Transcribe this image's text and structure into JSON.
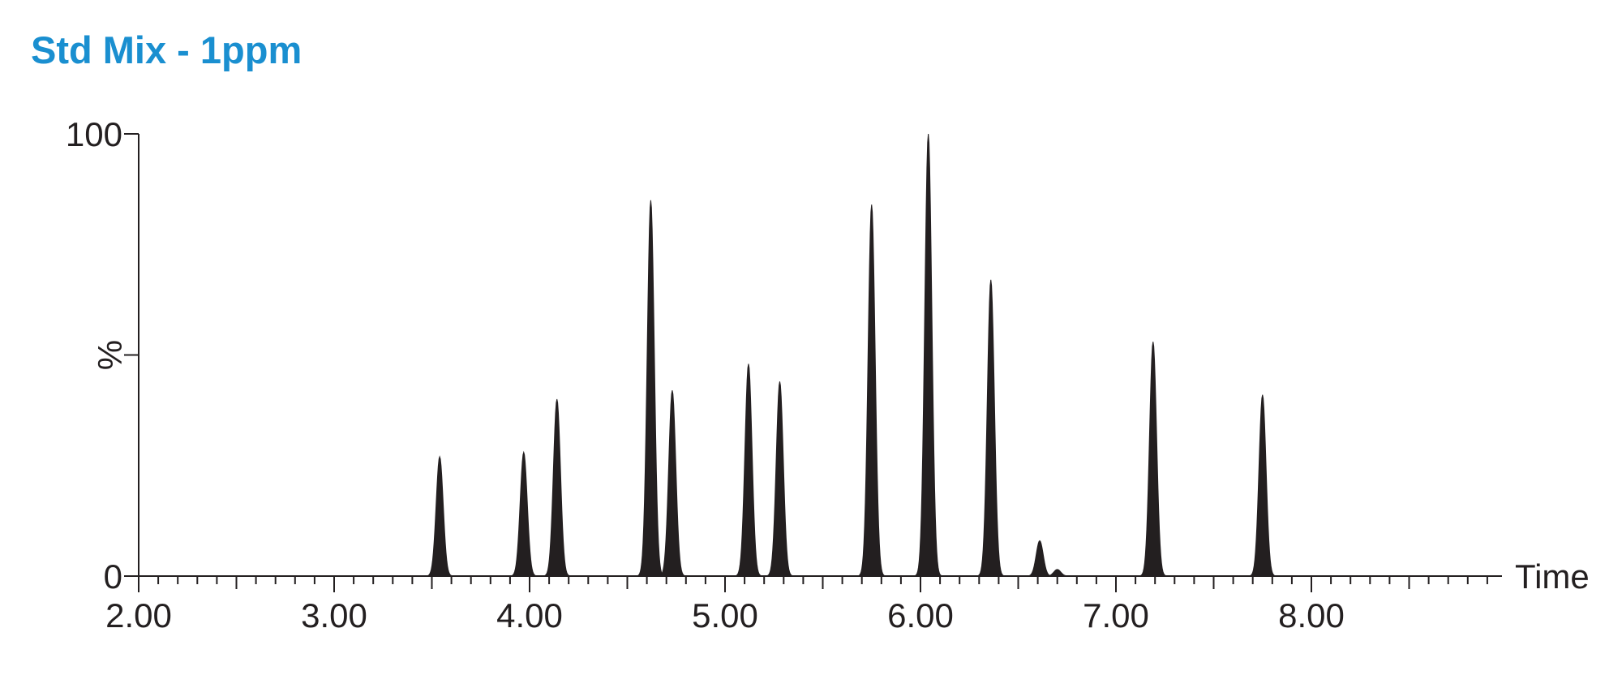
{
  "title": "Std Mix - 1ppm",
  "chart_data": {
    "type": "area",
    "title": "Std Mix - 1ppm",
    "xlabel": "Time",
    "ylabel": "%",
    "xlim": [
      2.0,
      8.95
    ],
    "ylim": [
      0,
      100
    ],
    "x_ticks": [
      2.0,
      3.0,
      4.0,
      5.0,
      6.0,
      7.0,
      8.0
    ],
    "x_tick_labels": [
      "2.00",
      "3.00",
      "4.00",
      "5.00",
      "6.00",
      "7.00",
      "8.00"
    ],
    "y_ticks": [
      0,
      50,
      100
    ],
    "y_tick_labels": [
      "0",
      "",
      "100"
    ],
    "grid": false,
    "legend": "none",
    "color": "#231f20",
    "peaks": [
      {
        "rt": 3.54,
        "height": 27
      },
      {
        "rt": 3.97,
        "height": 28
      },
      {
        "rt": 4.14,
        "height": 40
      },
      {
        "rt": 4.62,
        "height": 85
      },
      {
        "rt": 4.73,
        "height": 42
      },
      {
        "rt": 5.12,
        "height": 48
      },
      {
        "rt": 5.28,
        "height": 44
      },
      {
        "rt": 5.75,
        "height": 84
      },
      {
        "rt": 6.04,
        "height": 100
      },
      {
        "rt": 6.36,
        "height": 67
      },
      {
        "rt": 6.61,
        "height": 8
      },
      {
        "rt": 6.7,
        "height": 1.5
      },
      {
        "rt": 7.19,
        "height": 53
      },
      {
        "rt": 7.75,
        "height": 41
      }
    ]
  }
}
